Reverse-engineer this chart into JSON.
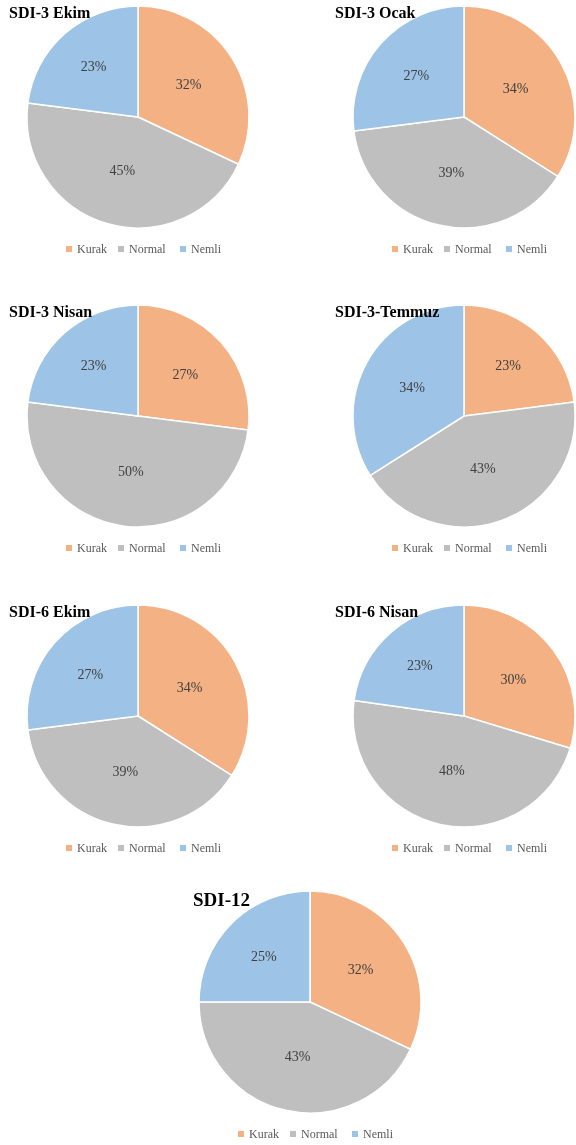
{
  "chart_data": [
    {
      "type": "pie",
      "title": "SDI-3 Ekim",
      "categories": [
        "Kurak",
        "Normal",
        "Nemli"
      ],
      "values": [
        32,
        45,
        23
      ],
      "colors": [
        "#f4b183",
        "#bfbfbf",
        "#9dc3e6"
      ],
      "value_labels": [
        "32%",
        "45%",
        "23%"
      ],
      "legend": "bottom"
    },
    {
      "type": "pie",
      "title": "SDI-3 Ocak",
      "categories": [
        "Kurak",
        "Normal",
        "Nemli"
      ],
      "values": [
        34,
        39,
        27
      ],
      "colors": [
        "#f4b183",
        "#bfbfbf",
        "#9dc3e6"
      ],
      "value_labels": [
        "34%",
        "39%",
        "27%"
      ],
      "legend": "bottom"
    },
    {
      "type": "pie",
      "title": "SDI-3 Nisan",
      "categories": [
        "Kurak",
        "Normal",
        "Nemli"
      ],
      "values": [
        27,
        50,
        23
      ],
      "colors": [
        "#f4b183",
        "#bfbfbf",
        "#9dc3e6"
      ],
      "value_labels": [
        "27%",
        "50%",
        "23%"
      ],
      "legend": "bottom"
    },
    {
      "type": "pie",
      "title": "SDI-3-Temmuz",
      "categories": [
        "Kurak",
        "Normal",
        "Nemli"
      ],
      "values": [
        23,
        43,
        34
      ],
      "colors": [
        "#f4b183",
        "#bfbfbf",
        "#9dc3e6"
      ],
      "value_labels": [
        "23%",
        "43%",
        "34%"
      ],
      "legend": "bottom"
    },
    {
      "type": "pie",
      "title": "SDI-6 Ekim",
      "categories": [
        "Kurak",
        "Normal",
        "Nemli"
      ],
      "values": [
        34,
        39,
        27
      ],
      "colors": [
        "#f4b183",
        "#bfbfbf",
        "#9dc3e6"
      ],
      "value_labels": [
        "34%",
        "39%",
        "27%"
      ],
      "legend": "bottom"
    },
    {
      "type": "pie",
      "title": "SDI-6 Nisan",
      "categories": [
        "Kurak",
        "Normal",
        "Nemli"
      ],
      "values": [
        30,
        48,
        23
      ],
      "colors": [
        "#f4b183",
        "#bfbfbf",
        "#9dc3e6"
      ],
      "value_labels": [
        "30%",
        "48%",
        "23%"
      ],
      "legend": "bottom"
    },
    {
      "type": "pie",
      "title": "SDI-12",
      "categories": [
        "Kurak",
        "Normal",
        "Nemli"
      ],
      "values": [
        32,
        43,
        25
      ],
      "colors": [
        "#f4b183",
        "#bfbfbf",
        "#9dc3e6"
      ],
      "value_labels": [
        "32%",
        "43%",
        "25%"
      ],
      "legend": "bottom"
    }
  ]
}
